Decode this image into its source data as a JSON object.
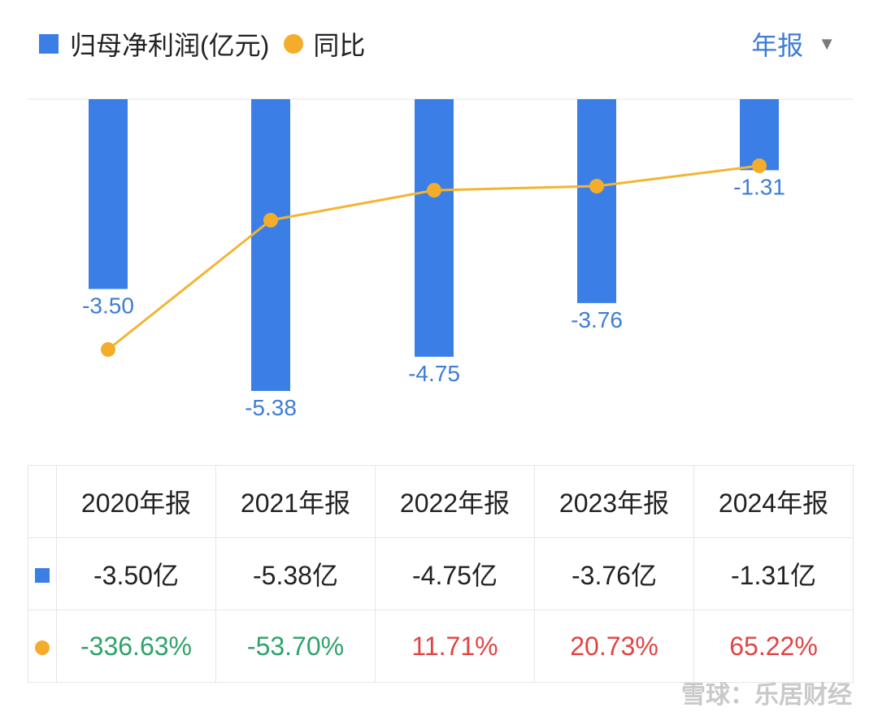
{
  "legend": {
    "series1_label": "归母净利润(亿元)",
    "series2_label": "同比"
  },
  "period_selector": {
    "label": "年报"
  },
  "colors": {
    "bar": "#3b7fe6",
    "line": "#f2b531",
    "dot": "#f4ad2a",
    "bar_label": "#3d7dd6",
    "positive": "#e04545",
    "negative": "#2fa36b",
    "grid": "#e6e6e6"
  },
  "chart_data": {
    "type": "bar",
    "categories": [
      "2020年报",
      "2021年报",
      "2022年报",
      "2023年报",
      "2024年报"
    ],
    "series": [
      {
        "name": "归母净利润(亿元)",
        "type": "bar",
        "values": [
          -3.5,
          -5.38,
          -4.75,
          -3.76,
          -1.31
        ],
        "labels": [
          "-3.50",
          "-5.38",
          "-4.75",
          "-3.76",
          "-1.31"
        ]
      },
      {
        "name": "同比",
        "type": "line",
        "values": [
          -336.63,
          -53.7,
          11.71,
          20.73,
          65.22
        ]
      }
    ],
    "bar_ylim": [
      -6.0,
      0
    ],
    "grid": false,
    "legend_position": "top-left"
  },
  "table": {
    "header": [
      "2020年报",
      "2021年报",
      "2022年报",
      "2023年报",
      "2024年报"
    ],
    "profit_row": [
      "-3.50亿",
      "-5.38亿",
      "-4.75亿",
      "-3.76亿",
      "-1.31亿"
    ],
    "yoy_row": [
      "-336.63%",
      "-53.70%",
      "11.71%",
      "20.73%",
      "65.22%"
    ],
    "yoy_trend": [
      "negative",
      "negative",
      "positive",
      "positive",
      "positive"
    ]
  },
  "watermark": "雪球：乐居财经"
}
